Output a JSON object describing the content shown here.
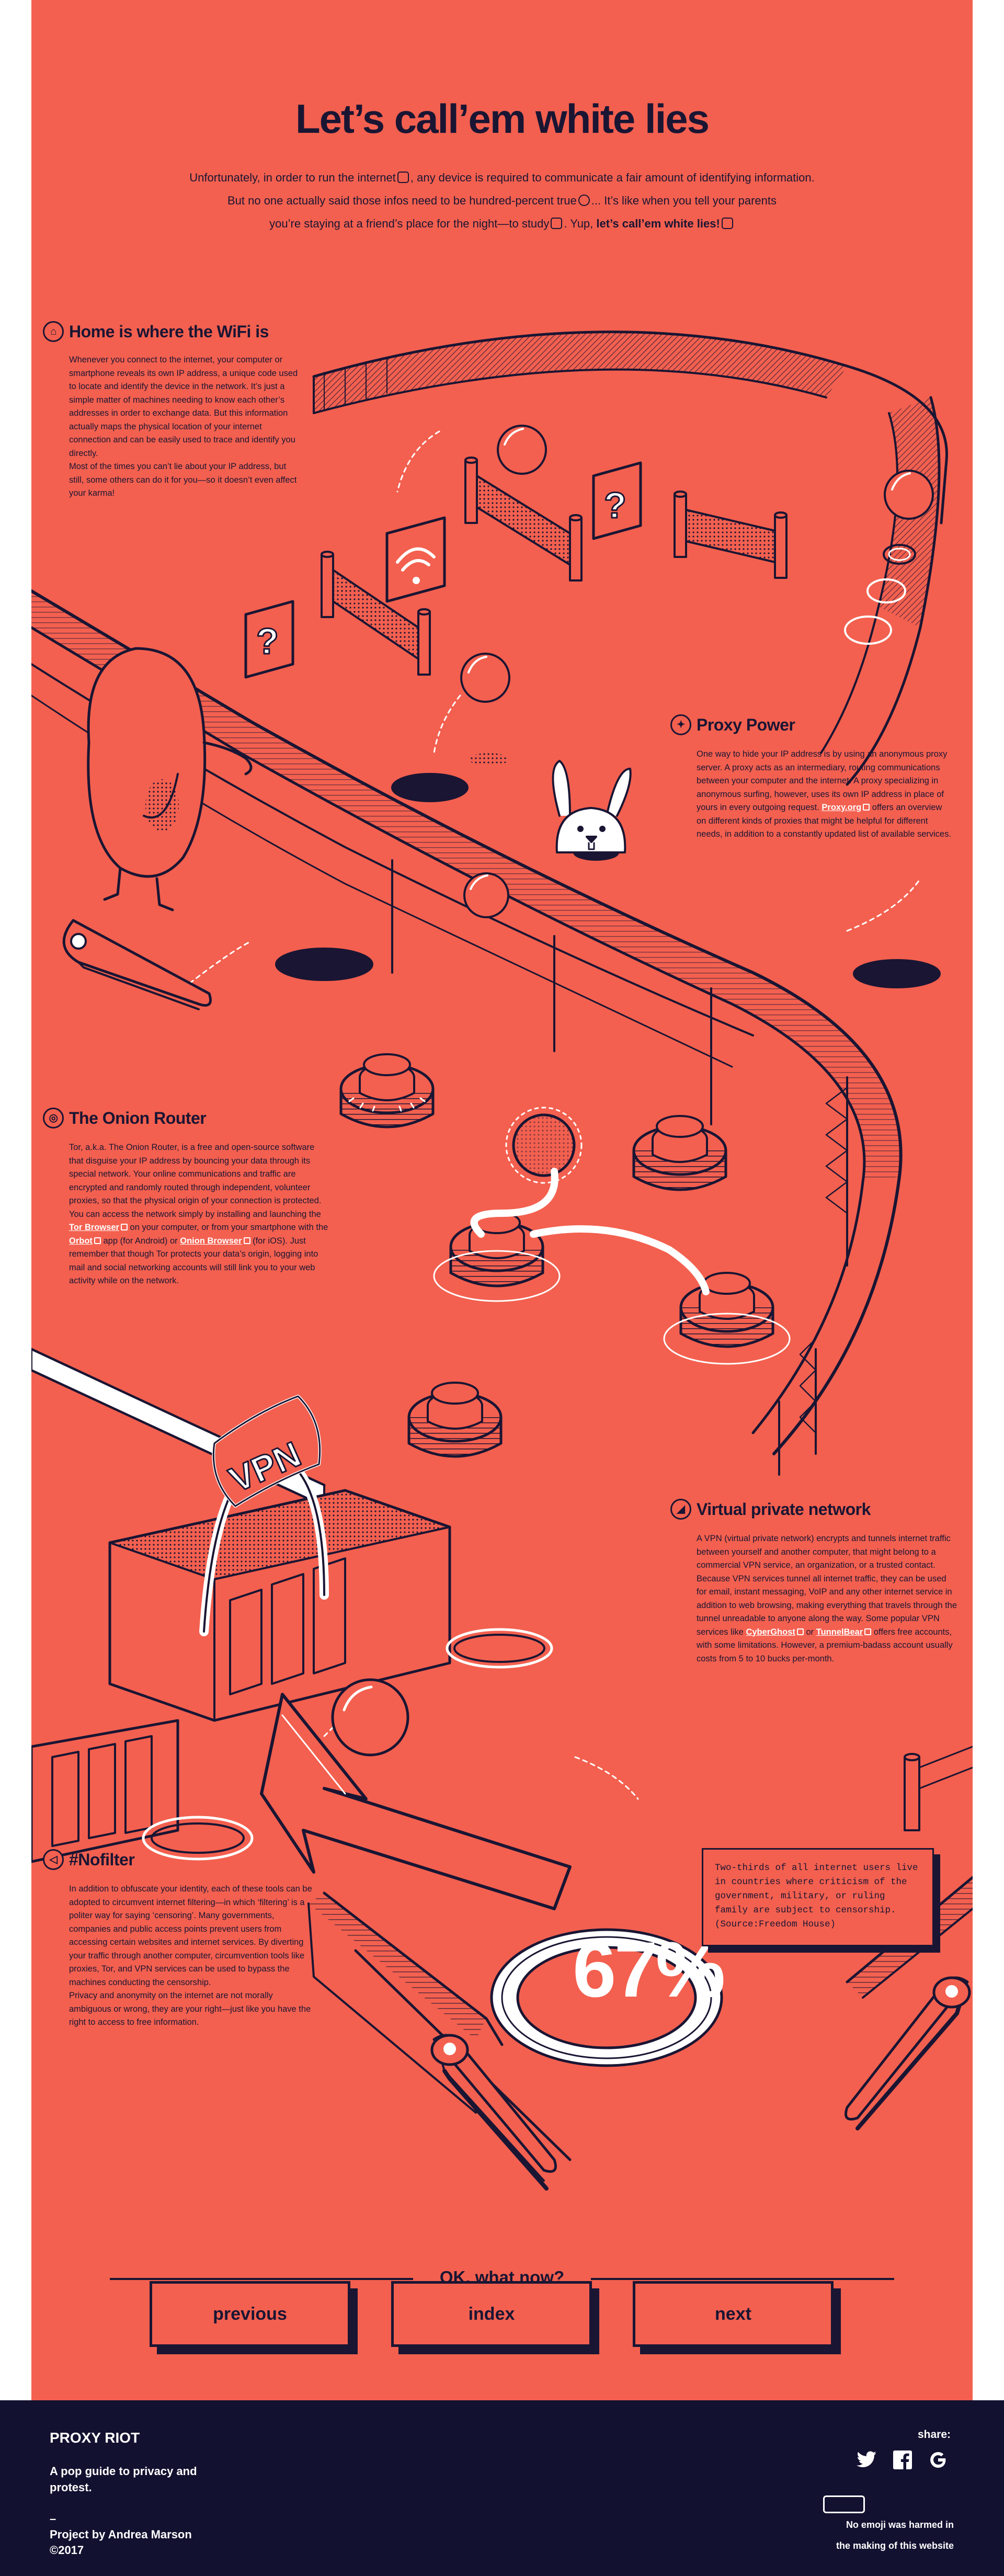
{
  "header": {
    "title": "Let’s call’em white lies",
    "intro_1": "Unfortunately, in order to run the internet",
    "intro_1b": ", any device is required to communicate a fair amount of identifying information.",
    "intro_2": "But no one actually said those infos need to be hundred-percent true",
    "intro_2b": "... It’s like when you tell your parents",
    "intro_3": "you’re staying at a friend’s place for the night—to study",
    "intro_3b": ". Yup,",
    "intro_3c": "let’s call’em white lies!"
  },
  "sections": {
    "home": {
      "title": "Home is where the WiFi is",
      "icon": "house-icon",
      "p1": "Whenever you connect to the internet, your computer or smartphone reveals its own IP address, a unique code used to locate and identify the device in the network. It’s just a simple matter of machines needing to know each other’s addresses in order to exchange data. But this information actually maps the physical location of your internet connection and can be easily used to trace and identify you directly.",
      "p2": "Most of the times you can’t lie about your IP address, but still, some others can do it for you—so it doesn’t even affect your karma!"
    },
    "proxy": {
      "title": "Proxy Power",
      "icon": "magic-hat-icon",
      "p1": "One way to hide your IP address is by using an anonymous proxy server. A proxy acts as an intermediary, routing communications between your computer and the internet. A proxy specializing in anonymous surfing, however, uses its own IP address in place of yours in every outgoing request.",
      "link": "Proxy.org",
      "p2": " offers an overview on different kinds of proxies that might be helpful for different needs, in addition to a constantly updated list of available services."
    },
    "onion": {
      "title": "The Onion Router",
      "icon": "onion-icon",
      "p1": "Tor, a.k.a. The Onion Router, is a free and open-source software that disguise your IP address by bouncing your data through its special network. Your online communications and traffic are encrypted and randomly routed through independent, volunteer proxies, so that the physical origin of your connection is protected. You can access the network simply by installing and launching the ",
      "link1": "Tor Browser",
      "p2": " on your computer, or from your smartphone with the ",
      "link2": "Orbot",
      "p3": " app (for Android) or ",
      "link3": "Onion Browser",
      "p4": " (for iOS). Just remember that though Tor protects your data’s origin, logging into mail and social networking accounts will still link you to your web activity while on the network."
    },
    "vpn": {
      "title": "Virtual private network",
      "icon": "tunnel-icon",
      "p1": "A VPN (virtual private network) encrypts and tunnels internet traffic between yourself and another computer, that might belong to a commercial VPN service, an organization, or a trusted contact. Because VPN services tunnel all internet traffic, they can be used for email, instant messaging, VoIP and any other internet service in addition to web browsing, making everything that travels through the tunnel unreadable to anyone along the way. Some popular VPN services like ",
      "link1": "CyberGhost",
      "p2": " or ",
      "link2": "TunnelBear",
      "p3": " offers free accounts, with some limitations. However, a premium-badass account usually costs from 5 to 10 bucks per-month."
    },
    "nofilter": {
      "title": "#Nofilter",
      "icon": "megaphone-icon",
      "p1": "In addition to obfuscate your identity, each of these tools can be adopted to circumvent internet filtering—in which ‘filtering’ is a politer way for saying ‘censoring’. Many governments, companies and public access points prevent users from accessing certain websites and internet services. By diverting your traffic through another computer, circumvention tools like proxies, Tor, and VPN services can be used to bypass the machines conducting the censorship.",
      "p2": "Privacy and anonymity on the internet are not morally ambiguous or wrong, they are your right—just like you have the right to access to free information."
    }
  },
  "stat": {
    "text": "Two-thirds of all internet users live in countries where criticism of the government, military, or ruling family are subject to censorship. (Source:Freedom House)",
    "value": "67%"
  },
  "art": {
    "vpn_sign": "VPN",
    "colors": {
      "background": "#f3604f",
      "ink": "#1a1533",
      "white": "#ffffff",
      "footer": "#121130"
    }
  },
  "nav": {
    "heading": "OK, what now?",
    "previous": "previous",
    "index": "index",
    "next": "next"
  },
  "footer": {
    "logo": "PROXY RIOT",
    "tagline": "A pop guide to privacy and protest.",
    "dash": "–",
    "credit": "Project by Andrea Marson",
    "year": "©2017",
    "share": "share:",
    "note_1": "No emoji was harmed in",
    "note_2": "the making of this website",
    "share_icons": [
      "twitter-icon",
      "facebook-icon",
      "google-icon"
    ]
  }
}
